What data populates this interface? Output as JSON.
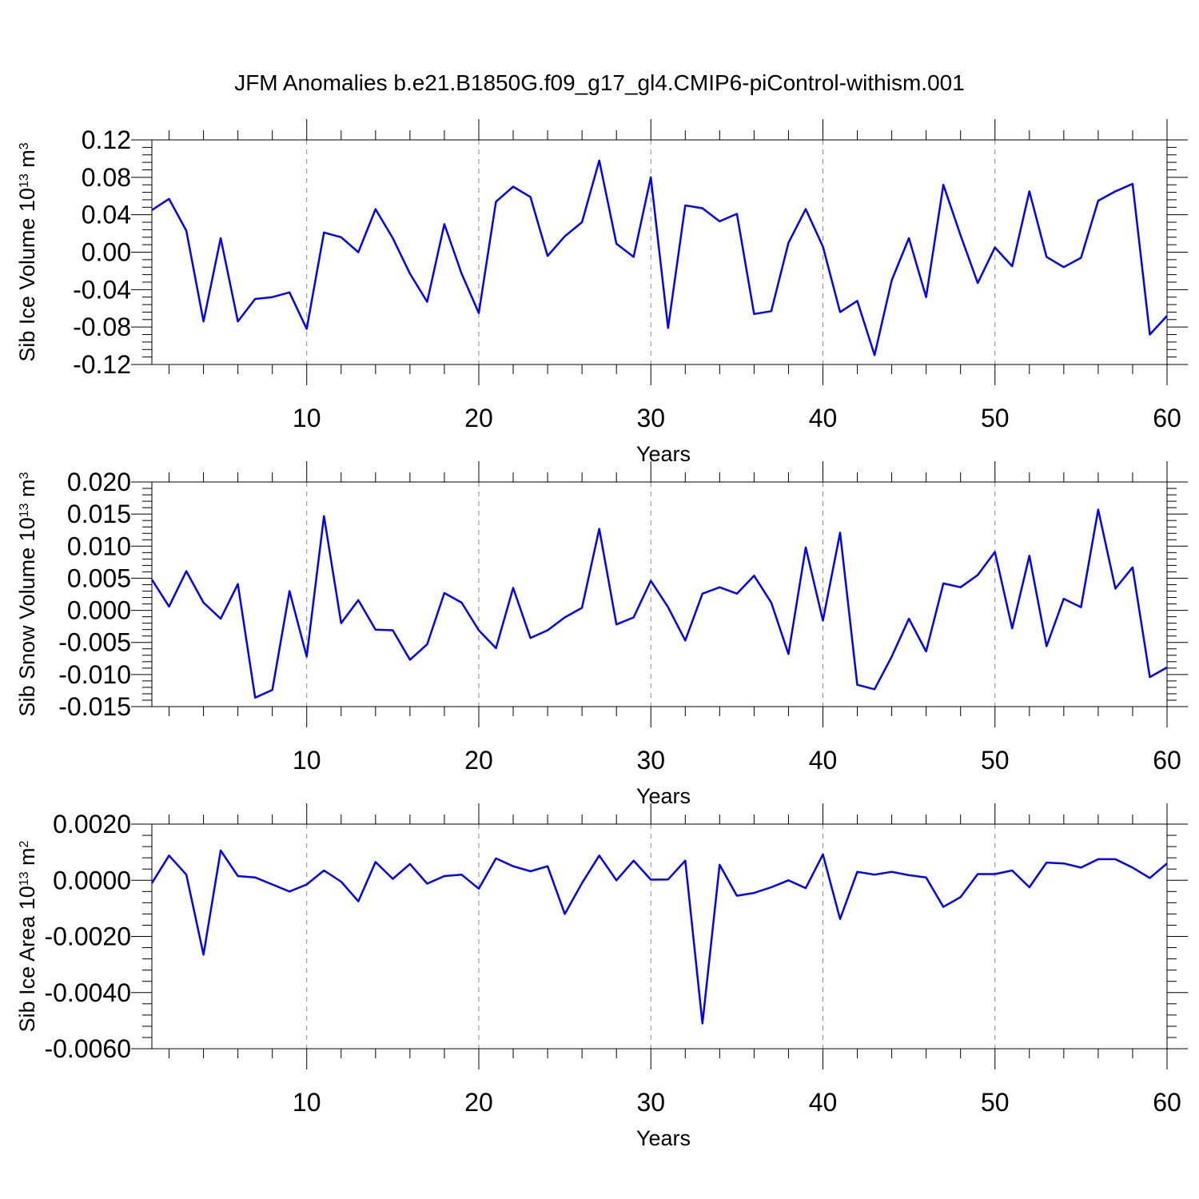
{
  "title": "JFM Anomalies b.e21.B1850G.f09_g17_gl4.CMIP6-piControl-withism.001",
  "colors": {
    "line": "#0000ff",
    "axis": "#000000",
    "grid": "#888888"
  },
  "chart_data": [
    {
      "type": "line",
      "name": "ice-volume",
      "ylabel_main": "Sib Ice Volume 10",
      "ylabel_exp": "13",
      "ylabel_unit": "m",
      "ylabel_unit_exp": "3",
      "xlabel": "Years",
      "xlim": [
        1,
        60
      ],
      "ylim": [
        -0.12,
        0.12
      ],
      "xticks": [
        10,
        20,
        30,
        40,
        50,
        60
      ],
      "yticks": [
        -0.12,
        -0.08,
        -0.04,
        0.0,
        0.04,
        0.08,
        0.12
      ],
      "ytick_labels": [
        "-0.12",
        "-0.08",
        "-0.04",
        "0.00",
        "0.04",
        "0.08",
        "0.12"
      ],
      "grid_x": [
        10,
        20,
        30,
        40,
        50
      ],
      "x": [
        1,
        2,
        3,
        4,
        5,
        6,
        7,
        8,
        9,
        10,
        11,
        12,
        13,
        14,
        15,
        16,
        17,
        18,
        19,
        20,
        21,
        22,
        23,
        24,
        25,
        26,
        27,
        28,
        29,
        30,
        31,
        32,
        33,
        34,
        35,
        36,
        37,
        38,
        39,
        40,
        41,
        42,
        43,
        44,
        45,
        46,
        47,
        48,
        49,
        50,
        51,
        52,
        53,
        54,
        55,
        56,
        57,
        58,
        59,
        60
      ],
      "values": [
        0.045,
        0.057,
        0.023,
        -0.074,
        0.015,
        -0.074,
        -0.05,
        -0.048,
        -0.043,
        -0.082,
        0.021,
        0.016,
        0.0,
        0.046,
        0.015,
        -0.023,
        -0.053,
        0.03,
        -0.023,
        -0.065,
        0.054,
        0.07,
        0.059,
        -0.004,
        0.017,
        0.032,
        0.098,
        0.009,
        -0.005,
        0.08,
        -0.081,
        0.05,
        0.047,
        0.033,
        0.041,
        -0.066,
        -0.063,
        0.01,
        0.046,
        0.006,
        -0.064,
        -0.052,
        -0.11,
        -0.03,
        0.015,
        -0.048,
        0.072,
        0.018,
        -0.033,
        0.005,
        -0.015,
        0.065,
        -0.005,
        -0.016,
        -0.006,
        0.055,
        0.065,
        0.073,
        -0.088,
        -0.068
      ]
    },
    {
      "type": "line",
      "name": "snow-volume",
      "ylabel_main": "Sib Snow Volume 10",
      "ylabel_exp": "13",
      "ylabel_unit": "m",
      "ylabel_unit_exp": "3",
      "xlabel": "Years",
      "xlim": [
        1,
        60
      ],
      "ylim": [
        -0.015,
        0.02
      ],
      "xticks": [
        10,
        20,
        30,
        40,
        50,
        60
      ],
      "yticks": [
        -0.015,
        -0.01,
        -0.005,
        0.0,
        0.005,
        0.01,
        0.015,
        0.02
      ],
      "ytick_labels": [
        "-0.015",
        "-0.010",
        "-0.005",
        "0.000",
        "0.005",
        "0.010",
        "0.015",
        "0.020"
      ],
      "grid_x": [
        10,
        20,
        30,
        40,
        50
      ],
      "x": [
        1,
        2,
        3,
        4,
        5,
        6,
        7,
        8,
        9,
        10,
        11,
        12,
        13,
        14,
        15,
        16,
        17,
        18,
        19,
        20,
        21,
        22,
        23,
        24,
        25,
        26,
        27,
        28,
        29,
        30,
        31,
        32,
        33,
        34,
        35,
        36,
        37,
        38,
        39,
        40,
        41,
        42,
        43,
        44,
        45,
        46,
        47,
        48,
        49,
        50,
        51,
        52,
        53,
        54,
        55,
        56,
        57,
        58,
        59,
        60
      ],
      "values": [
        0.0048,
        0.0006,
        0.0061,
        0.0012,
        -0.0013,
        0.0041,
        -0.0136,
        -0.0124,
        0.003,
        -0.0072,
        0.0147,
        -0.002,
        0.0016,
        -0.003,
        -0.0031,
        -0.0077,
        -0.0053,
        0.0027,
        0.0012,
        -0.0031,
        -0.0059,
        0.0035,
        -0.0043,
        -0.0031,
        -0.0011,
        0.0004,
        0.0127,
        -0.0022,
        -0.0011,
        0.0046,
        0.0005,
        -0.0047,
        0.0026,
        0.0036,
        0.0026,
        0.0054,
        0.0012,
        -0.0068,
        0.0098,
        -0.0016,
        0.0121,
        -0.0116,
        -0.0123,
        -0.0072,
        -0.0013,
        -0.0064,
        0.0042,
        0.0036,
        0.0055,
        0.0091,
        -0.0028,
        0.0085,
        -0.0056,
        0.0018,
        0.0005,
        0.0157,
        0.0034,
        0.0067,
        -0.0104,
        -0.0089
      ]
    },
    {
      "type": "line",
      "name": "ice-area",
      "ylabel_main": "Sib Ice Area 10",
      "ylabel_exp": "13",
      "ylabel_unit": "m",
      "ylabel_unit_exp": "2",
      "xlabel": "Years",
      "xlim": [
        1,
        60
      ],
      "ylim": [
        -0.006,
        0.002
      ],
      "xticks": [
        10,
        20,
        30,
        40,
        50,
        60
      ],
      "yticks": [
        -0.006,
        -0.004,
        -0.002,
        0.0,
        0.002
      ],
      "ytick_labels": [
        "-0.0060",
        "-0.0040",
        "-0.0020",
        "0.0000",
        "0.0020"
      ],
      "grid_x": [
        10,
        20,
        30,
        40,
        50
      ],
      "x": [
        1,
        2,
        3,
        4,
        5,
        6,
        7,
        8,
        9,
        10,
        11,
        12,
        13,
        14,
        15,
        16,
        17,
        18,
        19,
        20,
        21,
        22,
        23,
        24,
        25,
        26,
        27,
        28,
        29,
        30,
        31,
        32,
        33,
        34,
        35,
        36,
        37,
        38,
        39,
        40,
        41,
        42,
        43,
        44,
        45,
        46,
        47,
        48,
        49,
        50,
        51,
        52,
        53,
        54,
        55,
        56,
        57,
        58,
        59,
        60
      ],
      "values": [
        -0.0001,
        0.00088,
        0.0002,
        -0.00265,
        0.00106,
        0.00015,
        0.0001,
        -0.00015,
        -0.0004,
        -0.00015,
        0.00035,
        -5e-05,
        -0.00075,
        0.00065,
        5e-05,
        0.00058,
        -0.00012,
        0.00015,
        0.0002,
        -0.0003,
        0.00078,
        0.0005,
        0.00032,
        0.0005,
        -0.0012,
        -0.0001,
        0.00088,
        0.0,
        0.0007,
        2e-05,
        3e-05,
        0.0007,
        -0.0051,
        0.00055,
        -0.00055,
        -0.00045,
        -0.00025,
        0.0,
        -0.00028,
        0.00092,
        -0.00138,
        0.0003,
        0.0002,
        0.0003,
        0.00018,
        0.0001,
        -0.00095,
        -0.0006,
        0.00022,
        0.00022,
        0.00035,
        -0.00025,
        0.00063,
        0.0006,
        0.00045,
        0.00075,
        0.00075,
        0.00045,
        8e-05,
        0.0006
      ]
    }
  ]
}
